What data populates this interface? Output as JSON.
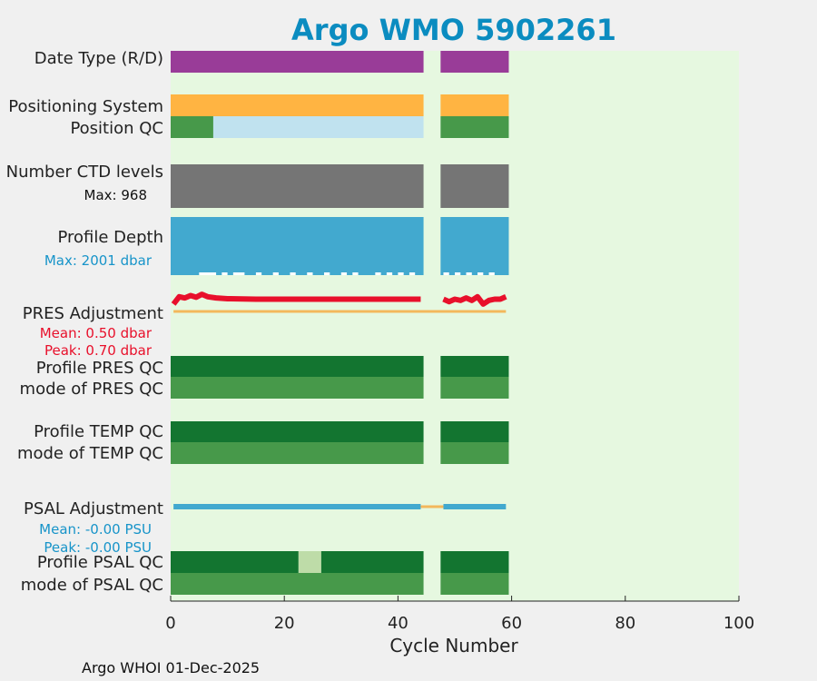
{
  "title": "Argo WMO 5902261",
  "footer": "Argo WHOI 01-Dec-2025",
  "colors": {
    "background": "#e6f8e0",
    "title": "#0b8cc0",
    "date_type": "#993c98",
    "positioning": "#ffb442",
    "qc_good": "#47994a",
    "qc_dark": "#137530",
    "qc_light": "#bedca8",
    "qc_missing": "#c0e2ef",
    "ctd": "#757575",
    "depth": "#42a9cf",
    "pres_line": "#e8102b",
    "zero_line": "#f3b85c",
    "psal_line": "#42a9cf",
    "text": "#222222",
    "blue_text": "#1794c9",
    "red_text": "#e8102b"
  },
  "chart_data": {
    "type": "bar",
    "xlabel": "Cycle Number",
    "xlim": [
      0,
      100
    ],
    "xticks": [
      0,
      20,
      40,
      60,
      80,
      100
    ],
    "gap_cycles": [
      45,
      47
    ],
    "segments": [
      [
        0,
        44.5
      ],
      [
        47.5,
        59.5
      ]
    ],
    "rows": [
      {
        "label": "Date Type (R/D)",
        "color": "date_type",
        "blocks": [
          [
            0,
            44.5,
            "date_type"
          ],
          [
            47.5,
            59.5,
            "date_type"
          ]
        ]
      },
      {
        "label": "Positioning System",
        "color": "positioning",
        "blocks": [
          [
            0,
            44.5,
            "positioning"
          ],
          [
            47.5,
            59.5,
            "positioning"
          ]
        ]
      },
      {
        "label": "Position QC",
        "blocks": [
          [
            0,
            7.5,
            "qc_good"
          ],
          [
            7.5,
            44.5,
            "qc_missing"
          ],
          [
            47.5,
            59.5,
            "qc_good"
          ]
        ]
      },
      {
        "label": "Number CTD levels",
        "sub": "Max: 968",
        "blocks": [
          [
            0,
            44.5,
            "ctd"
          ],
          [
            47.5,
            59.5,
            "ctd"
          ]
        ]
      },
      {
        "label": "Profile Depth",
        "sub": "Max: 2001 dbar",
        "blocks": [
          [
            0,
            44.5,
            "depth"
          ],
          [
            47.5,
            59.5,
            "depth"
          ]
        ]
      },
      {
        "label": "PRES Adjustment",
        "sub1": "Mean: 0.50 dbar",
        "sub2": "Peak: 0.70 dbar"
      },
      {
        "label": "Profile PRES QC",
        "blocks": [
          [
            0,
            44.5,
            "qc_dark"
          ],
          [
            47.5,
            59.5,
            "qc_dark"
          ]
        ]
      },
      {
        "label": "mode of PRES QC",
        "blocks": [
          [
            0,
            44.5,
            "qc_good"
          ],
          [
            47.5,
            59.5,
            "qc_good"
          ]
        ]
      },
      {
        "label": "Profile TEMP QC",
        "blocks": [
          [
            0,
            44.5,
            "qc_dark"
          ],
          [
            47.5,
            59.5,
            "qc_dark"
          ]
        ]
      },
      {
        "label": "mode of TEMP QC",
        "blocks": [
          [
            0,
            44.5,
            "qc_good"
          ],
          [
            47.5,
            59.5,
            "qc_good"
          ]
        ]
      },
      {
        "label": "PSAL Adjustment",
        "sub1": "Mean: -0.00 PSU",
        "sub2": "Peak: -0.00 PSU"
      },
      {
        "label": "Profile PSAL QC",
        "blocks": [
          [
            0,
            22.5,
            "qc_dark"
          ],
          [
            22.5,
            26.5,
            "qc_light"
          ],
          [
            26.5,
            44.5,
            "qc_dark"
          ],
          [
            47.5,
            59.5,
            "qc_dark"
          ]
        ]
      },
      {
        "label": "mode of PSAL QC",
        "blocks": [
          [
            0,
            44.5,
            "qc_good"
          ],
          [
            47.5,
            59.5,
            "qc_good"
          ]
        ]
      }
    ],
    "pres_adjustment": {
      "x": [
        0.5,
        1.5,
        2.5,
        3.5,
        4.5,
        5.5,
        6.5,
        8,
        10,
        15,
        20,
        25,
        30,
        35,
        40,
        44,
        48,
        49,
        50,
        51,
        52,
        53,
        54,
        55,
        56,
        57,
        58,
        59
      ],
      "y": [
        0.3,
        0.6,
        0.55,
        0.65,
        0.58,
        0.7,
        0.6,
        0.55,
        0.52,
        0.5,
        0.5,
        0.5,
        0.5,
        0.5,
        0.5,
        0.5,
        0.5,
        0.4,
        0.5,
        0.45,
        0.55,
        0.45,
        0.6,
        0.3,
        0.45,
        0.5,
        0.5,
        0.6
      ],
      "zero": [
        [
          0.5,
          59
        ]
      ]
    },
    "psal_adjustment": {
      "x_segments": [
        [
          0.5,
          44
        ],
        [
          48,
          59
        ]
      ],
      "value": 0.0,
      "zero": [
        [
          44,
          48
        ]
      ]
    },
    "depth_dips": [
      [
        5,
        8
      ],
      [
        9,
        10
      ],
      [
        11,
        13
      ],
      [
        15,
        16
      ],
      [
        18,
        19
      ],
      [
        21,
        22
      ],
      [
        24,
        25
      ],
      [
        27,
        28
      ],
      [
        30,
        31
      ],
      [
        32,
        33
      ],
      [
        36,
        37
      ],
      [
        38,
        39
      ],
      [
        40,
        41
      ],
      [
        42,
        43
      ],
      [
        48,
        49
      ],
      [
        50,
        51
      ],
      [
        52,
        53
      ],
      [
        54,
        55
      ],
      [
        56,
        57
      ]
    ]
  }
}
